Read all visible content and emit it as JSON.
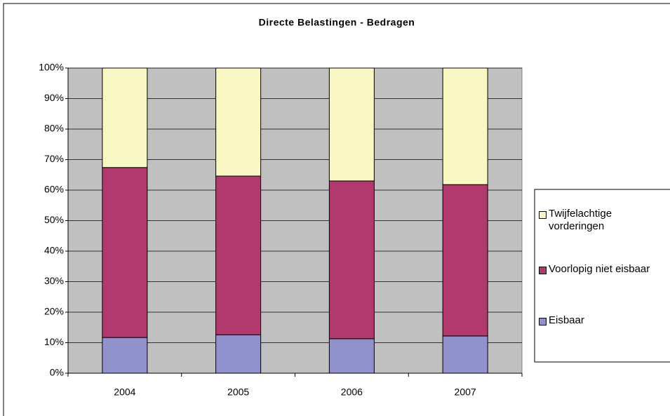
{
  "chart_data": {
    "type": "stacked_bar",
    "title": "Directe Belastingen - Bedragen",
    "categories": [
      "2004",
      "2005",
      "2006",
      "2007"
    ],
    "series": [
      {
        "name": "Eisbaar",
        "color": "#9191cc",
        "values": [
          11.7,
          12.6,
          11.3,
          12.2
        ]
      },
      {
        "name": "Voorlopig niet eisbaar",
        "color": "#b03a6e",
        "values": [
          55.7,
          52.0,
          51.7,
          49.6
        ]
      },
      {
        "name": "Twijfelachtige vorderingen",
        "color": "#f9f7c3",
        "values": [
          32.6,
          35.4,
          37.0,
          38.2
        ]
      }
    ],
    "ylim": [
      0,
      100
    ],
    "yticks": [
      {
        "value": 0,
        "label": "0%"
      },
      {
        "value": 10,
        "label": "10%"
      },
      {
        "value": 20,
        "label": "20%"
      },
      {
        "value": 30,
        "label": "30%"
      },
      {
        "value": 40,
        "label": "40%"
      },
      {
        "value": 50,
        "label": "50%"
      },
      {
        "value": 60,
        "label": "60%"
      },
      {
        "value": 70,
        "label": "70%"
      },
      {
        "value": 80,
        "label": "80%"
      },
      {
        "value": 90,
        "label": "90%"
      },
      {
        "value": 100,
        "label": "100%"
      }
    ],
    "grid": true,
    "legend": "right"
  }
}
